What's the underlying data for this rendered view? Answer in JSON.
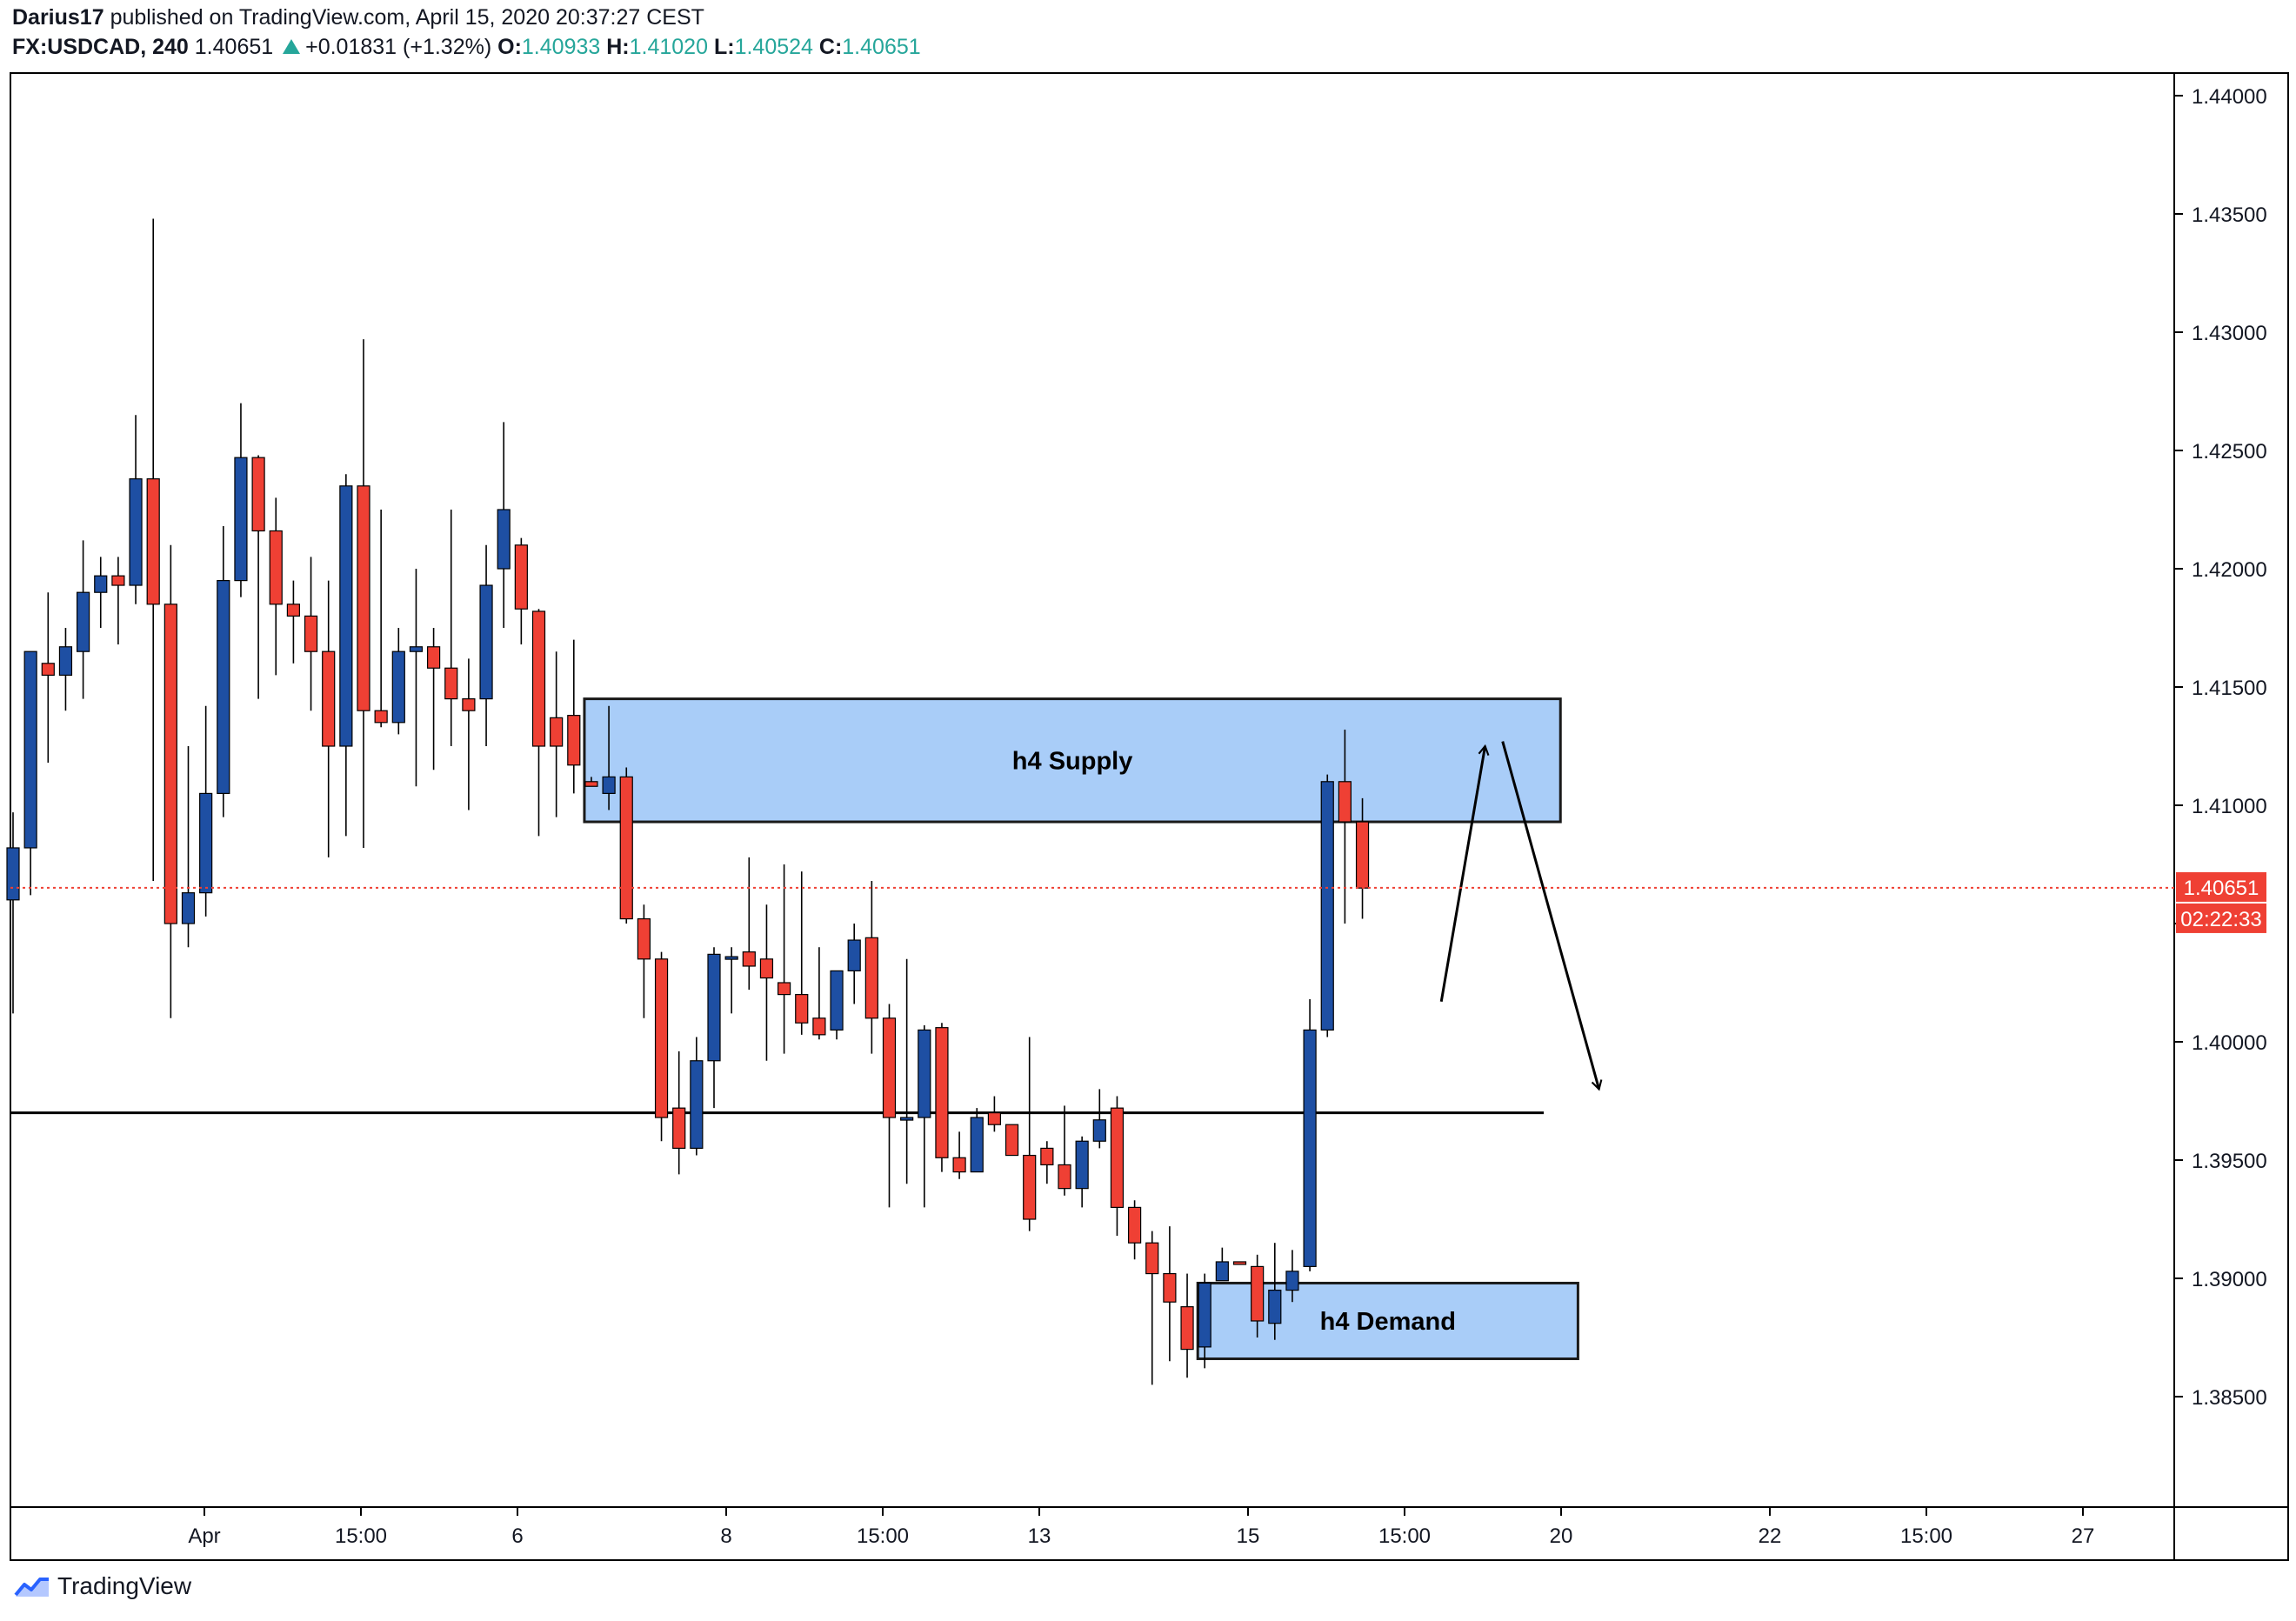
{
  "header": {
    "author": "Darius17",
    "published_text": "published on TradingView.com, April 15, 2020 20:37:27 CEST",
    "symbol": "FX:USDCAD, 240",
    "last": "1.40651",
    "change": "+0.01831 (+1.32%)",
    "open_label": "O:",
    "open": "1.40933",
    "high_label": "H:",
    "high": "1.41020",
    "low_label": "L:",
    "low": "1.40524",
    "close_label": "C:",
    "close": "1.40651"
  },
  "footer": {
    "brand": "TradingView",
    "logo_icon": "tradingview-logo-icon"
  },
  "colors": {
    "up": "#1e4fa3",
    "down": "#ef4034",
    "zone": "#a9cdf8",
    "price_line": "#ef4034"
  },
  "chart_data": {
    "type": "candlestick",
    "ylim": [
      1.381,
      1.441
    ],
    "y_ticks": [
      "1.44000",
      "1.43500",
      "1.43000",
      "1.42500",
      "1.42000",
      "1.41500",
      "1.41000",
      "1.40500",
      "1.40000",
      "1.39500",
      "1.39000",
      "1.38500"
    ],
    "x_ticks": [
      "Apr",
      "15:00",
      "6",
      "8",
      "15:00",
      "13",
      "15",
      "15:00",
      "20",
      "22",
      "15:00",
      "27"
    ],
    "current_price_label": "1.40651",
    "countdown_label": "02:22:33",
    "current_price": 1.40651,
    "horizontal_line": 1.397,
    "zones": [
      {
        "label": "h4 Supply",
        "y_top": 1.4145,
        "y_bottom": 1.4093,
        "from_bar": 33,
        "to_bar": 88.3
      },
      {
        "label": "h4 Demand",
        "y_top": 1.3898,
        "y_bottom": 1.3866,
        "from_bar": 68,
        "to_bar": 89.3
      }
    ],
    "candles": [
      [
        1.406,
        1.4097,
        1.4012,
        1.4082
      ],
      [
        1.4082,
        1.416,
        1.4062,
        1.4165
      ],
      [
        1.416,
        1.419,
        1.4118,
        1.4155
      ],
      [
        1.4155,
        1.4175,
        1.414,
        1.4167
      ],
      [
        1.4165,
        1.4212,
        1.4145,
        1.419
      ],
      [
        1.419,
        1.4205,
        1.4175,
        1.4197
      ],
      [
        1.4197,
        1.4205,
        1.4168,
        1.4193
      ],
      [
        1.4193,
        1.4265,
        1.4185,
        1.4238
      ],
      [
        1.4238,
        1.4348,
        1.4068,
        1.4185
      ],
      [
        1.4185,
        1.421,
        1.401,
        1.405
      ],
      [
        1.405,
        1.4125,
        1.404,
        1.4063
      ],
      [
        1.4063,
        1.4142,
        1.4053,
        1.4105
      ],
      [
        1.4105,
        1.4218,
        1.4095,
        1.4195
      ],
      [
        1.4195,
        1.427,
        1.4188,
        1.4247
      ],
      [
        1.4247,
        1.4248,
        1.4145,
        1.4216
      ],
      [
        1.4216,
        1.423,
        1.4155,
        1.4185
      ],
      [
        1.4185,
        1.4195,
        1.416,
        1.418
      ],
      [
        1.418,
        1.4205,
        1.414,
        1.4165
      ],
      [
        1.4165,
        1.4195,
        1.4078,
        1.4125
      ],
      [
        1.4125,
        1.424,
        1.4087,
        1.4235
      ],
      [
        1.4235,
        1.4297,
        1.4082,
        1.414
      ],
      [
        1.414,
        1.4225,
        1.4133,
        1.4135
      ],
      [
        1.4135,
        1.4175,
        1.413,
        1.4165
      ],
      [
        1.4165,
        1.42,
        1.4108,
        1.4167
      ],
      [
        1.4167,
        1.4175,
        1.4115,
        1.4158
      ],
      [
        1.4158,
        1.4225,
        1.4125,
        1.4145
      ],
      [
        1.4145,
        1.4162,
        1.4098,
        1.414
      ],
      [
        1.4145,
        1.421,
        1.4125,
        1.4193
      ],
      [
        1.42,
        1.4262,
        1.4175,
        1.4225
      ],
      [
        1.421,
        1.4213,
        1.4168,
        1.4183
      ],
      [
        1.4182,
        1.4183,
        1.4087,
        1.4125
      ],
      [
        1.4137,
        1.4165,
        1.4095,
        1.4125
      ],
      [
        1.4138,
        1.417,
        1.4105,
        1.4117
      ],
      [
        1.411,
        1.4112,
        1.411,
        1.4108
      ],
      [
        1.4105,
        1.4142,
        1.4098,
        1.4112
      ],
      [
        1.4112,
        1.4116,
        1.405,
        1.4052
      ],
      [
        1.4052,
        1.4058,
        1.401,
        1.4035
      ],
      [
        1.4035,
        1.4038,
        1.3958,
        1.3968
      ],
      [
        1.3972,
        1.3996,
        1.3944,
        1.3955
      ],
      [
        1.3955,
        1.4002,
        1.3952,
        1.3992
      ],
      [
        1.3992,
        1.404,
        1.3972,
        1.4037
      ],
      [
        1.4036,
        1.404,
        1.4012,
        1.4036
      ],
      [
        1.4038,
        1.4078,
        1.4022,
        1.4032
      ],
      [
        1.4035,
        1.4058,
        1.3992,
        1.4027
      ],
      [
        1.4025,
        1.4075,
        1.3995,
        1.402
      ],
      [
        1.402,
        1.4072,
        1.4003,
        1.4008
      ],
      [
        1.401,
        1.404,
        1.4001,
        1.4003
      ],
      [
        1.4005,
        1.403,
        1.4001,
        1.403
      ],
      [
        1.403,
        1.405,
        1.4016,
        1.4043
      ],
      [
        1.4044,
        1.4068,
        1.3995,
        1.401
      ],
      [
        1.401,
        1.4016,
        1.393,
        1.3968
      ],
      [
        1.3968,
        1.4035,
        1.394,
        1.3968
      ],
      [
        1.3968,
        1.4007,
        1.393,
        1.4005
      ],
      [
        1.4006,
        1.4008,
        1.3945,
        1.3951
      ],
      [
        1.3951,
        1.3962,
        1.3942,
        1.3945
      ],
      [
        1.3945,
        1.3972,
        1.3945,
        1.3968
      ],
      [
        1.397,
        1.3977,
        1.3962,
        1.3965
      ],
      [
        1.3965,
        1.3965,
        1.3952,
        1.3952
      ],
      [
        1.3952,
        1.4002,
        1.392,
        1.3925
      ],
      [
        1.3955,
        1.3958,
        1.394,
        1.3948
      ],
      [
        1.3948,
        1.3973,
        1.3935,
        1.3938
      ],
      [
        1.3938,
        1.396,
        1.393,
        1.3958
      ],
      [
        1.3958,
        1.398,
        1.3955,
        1.3967
      ],
      [
        1.3972,
        1.3977,
        1.3918,
        1.393
      ],
      [
        1.393,
        1.3933,
        1.3908,
        1.3915
      ],
      [
        1.3915,
        1.392,
        1.3855,
        1.3902
      ],
      [
        1.3902,
        1.3922,
        1.3865,
        1.389
      ],
      [
        1.3888,
        1.3902,
        1.3858,
        1.387
      ],
      [
        1.3871,
        1.3902,
        1.3862,
        1.3898
      ],
      [
        1.3899,
        1.3913,
        1.3899,
        1.3907
      ],
      [
        1.3907,
        1.3907,
        1.3906,
        1.3906
      ],
      [
        1.3905,
        1.391,
        1.3875,
        1.3882
      ],
      [
        1.3881,
        1.3915,
        1.3874,
        1.3895
      ],
      [
        1.3895,
        1.3912,
        1.389,
        1.3903
      ],
      [
        1.3905,
        1.4018,
        1.3903,
        1.4005
      ],
      [
        1.4005,
        1.4113,
        1.4002,
        1.411
      ],
      [
        1.411,
        1.4132,
        1.405,
        1.4093
      ],
      [
        1.4093,
        1.4103,
        1.4052,
        1.4065
      ]
    ],
    "arrows": [
      {
        "from": [
          81.5,
          1.4017
        ],
        "to": [
          84,
          1.4125
        ]
      },
      {
        "from": [
          85,
          1.4127
        ],
        "to": [
          90.5,
          1.398
        ]
      }
    ]
  }
}
